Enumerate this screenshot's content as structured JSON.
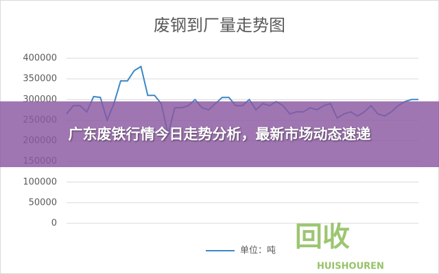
{
  "chart_data": {
    "type": "line",
    "title": "废钢到厂量走势图",
    "categories": [
      null,
      null,
      null,
      null,
      null,
      null,
      null,
      null,
      null,
      null,
      null,
      null,
      null,
      null,
      null,
      null,
      null,
      null,
      null,
      null,
      null,
      null,
      null,
      null,
      null,
      null,
      null,
      null,
      null,
      null,
      null,
      null,
      null,
      null,
      null,
      null,
      null,
      null,
      null,
      null,
      null,
      null,
      null,
      null,
      null,
      null,
      null,
      null,
      null,
      null,
      null,
      null,
      null
    ],
    "series": [
      {
        "name": "单位：吨",
        "color": "#3a87c4",
        "values": [
          265000,
          285000,
          285000,
          270000,
          307000,
          305000,
          250000,
          290000,
          345000,
          345000,
          370000,
          380000,
          310000,
          310000,
          290000,
          215000,
          280000,
          280000,
          285000,
          300000,
          280000,
          275000,
          290000,
          305000,
          305000,
          285000,
          285000,
          300000,
          275000,
          290000,
          285000,
          295000,
          285000,
          265000,
          270000,
          270000,
          280000,
          275000,
          285000,
          290000,
          255000,
          265000,
          270000,
          260000,
          270000,
          285000,
          265000,
          260000,
          270000,
          285000,
          295000,
          300000,
          300000
        ]
      }
    ],
    "ylim": [
      0,
      400000
    ],
    "yticks": [
      0,
      50000,
      100000,
      150000,
      200000,
      250000,
      300000,
      350000,
      400000
    ],
    "grid": true,
    "legend": "bottom"
  },
  "overlay": {
    "title": "广东废铁行情今日走势分析，最新市场动态速递"
  },
  "watermark": {
    "logo": "回收",
    "brand": "HUISHOUREN"
  }
}
